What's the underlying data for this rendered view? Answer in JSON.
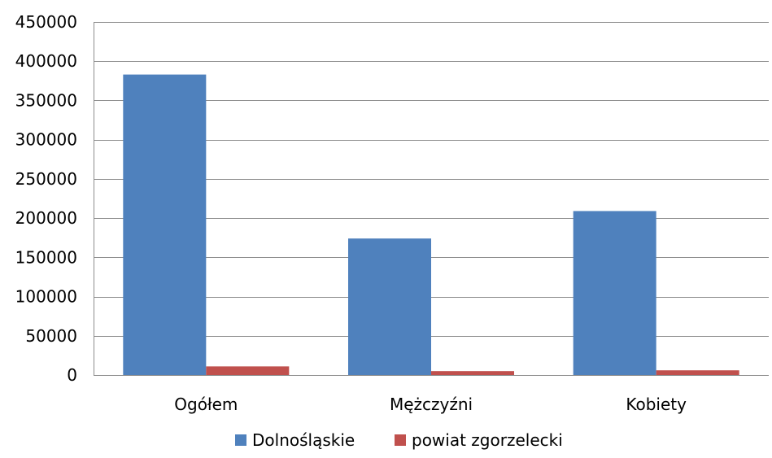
{
  "chart_data": {
    "type": "bar",
    "title": "",
    "xlabel": "",
    "ylabel": "",
    "categories": [
      "Ogółem",
      "Mężczyźni",
      "Kobiety"
    ],
    "series": [
      {
        "name": "Dolnośląskie",
        "color": "#4f81bd",
        "values": [
          383000,
          174000,
          209000
        ]
      },
      {
        "name": "powiat zgorzelecki",
        "color": "#c0504d",
        "values": [
          11000,
          5000,
          6000
        ]
      }
    ],
    "ylim": [
      0,
      450000
    ],
    "yticks": [
      0,
      50000,
      100000,
      150000,
      200000,
      250000,
      300000,
      350000,
      400000,
      450000
    ],
    "ytick_labels": [
      "0",
      "50000",
      "100000",
      "150000",
      "200000",
      "250000",
      "300000",
      "350000",
      "400000",
      "450000"
    ],
    "grid": true,
    "legend_position": "bottom"
  }
}
